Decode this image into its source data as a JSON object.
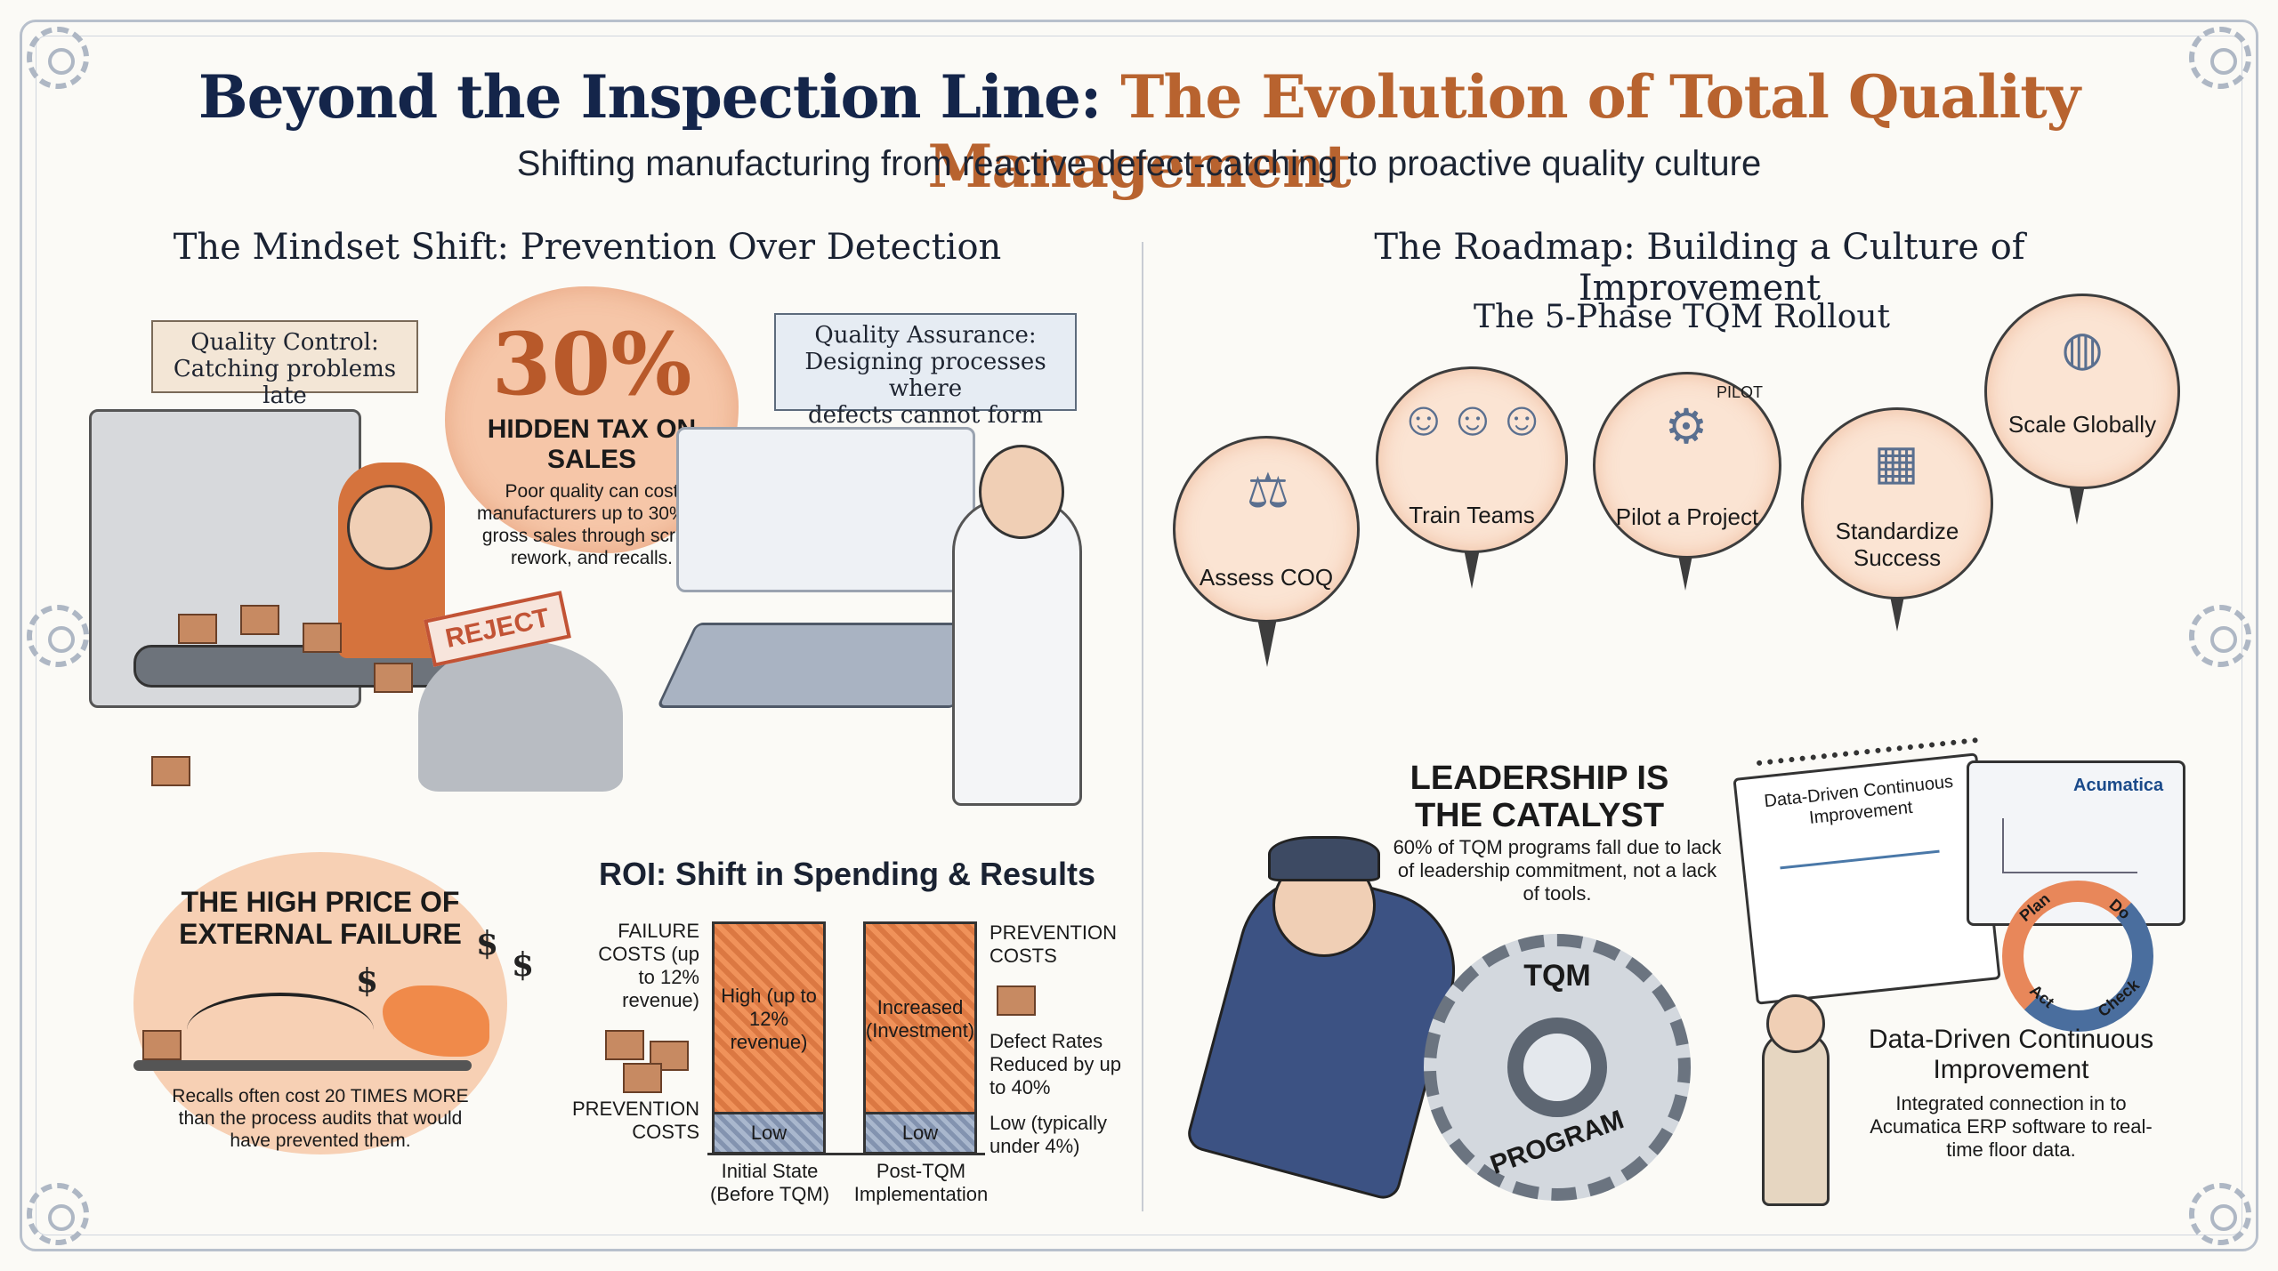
{
  "header": {
    "title_part1": "Beyond the Inspection Line:",
    "title_part2": "The Evolution of Total Quality Management",
    "subtitle": "Shifting manufacturing from reactive defect-catching to proactive quality culture"
  },
  "left": {
    "heading": "The Mindset Shift: Prevention Over Detection",
    "qc_banner": [
      "Quality Control:",
      "Catching problems late"
    ],
    "qa_banner": [
      "Quality Assurance:",
      "Designing processes where",
      "defects cannot form"
    ],
    "cloud": {
      "big": "30%",
      "caption": "HIDDEN TAX ON SALES",
      "text": "Poor quality can cost manufacturers up to 30% of gross sales through scrap, rework, and recalls."
    },
    "reject_stamp": "REJECT",
    "external_failure": {
      "title": "THE HIGH PRICE OF EXTERNAL FAILURE",
      "text": "Recalls often cost 20 TIMES MORE than the process audits that would have prevented them.",
      "dollar": "$"
    },
    "roi": {
      "title": "ROI: Shift in Spending & Results",
      "left_labels": {
        "failure": "FAILURE COSTS (up to 12% revenue)",
        "prevention": "PREVENTION COSTS"
      },
      "right_labels": {
        "prevention": "PREVENTION COSTS",
        "defects": "Defect Rates Reduced by up to 40%",
        "low": "Low (typically under 4%)"
      },
      "bars": [
        {
          "category": "Initial State (Before TQM)",
          "top_label": "High (up to 12% revenue)",
          "bottom_label": "Low"
        },
        {
          "category": "Post-TQM Implementation",
          "top_label": "Increased (Investment)",
          "bottom_label": "Low"
        }
      ]
    }
  },
  "right": {
    "heading": "The Roadmap: Building a Culture of Improvement",
    "rollout_title": "The 5-Phase TQM Rollout",
    "phases": [
      {
        "label": "Assess COQ",
        "icon": "scale-icon"
      },
      {
        "label": "Train Teams",
        "icon": "team-icon"
      },
      {
        "label": "Pilot a Project",
        "icon": "pilot-icon"
      },
      {
        "label": "Standardize Success",
        "icon": "blueprint-icon"
      },
      {
        "label": "Scale Globally",
        "icon": "globe-icon"
      }
    ],
    "pilot_flag": "PILOT",
    "leadership": {
      "heading": "LEADERSHIP IS THE CATALYST",
      "text": "60% of TQM programs fall due to lack of leadership commitment, not a lack of tools.",
      "gear_top": "TQM",
      "gear_bottom": "PROGRAM"
    },
    "data_driven": {
      "calendar_title": "Data-Driven Continuous Improvement",
      "screen_brand": "Acumatica",
      "pdca": [
        "Plan",
        "Do",
        "Check",
        "Act"
      ],
      "heading": "Data-Driven Continuous Improvement",
      "text": "Integrated connection in to Acumatica ERP software to real-time floor data."
    }
  },
  "colors": {
    "navy": "#14254a",
    "accent": "#b8632f",
    "peach": "#f6c6a8",
    "steel": "#a9b7cd"
  }
}
